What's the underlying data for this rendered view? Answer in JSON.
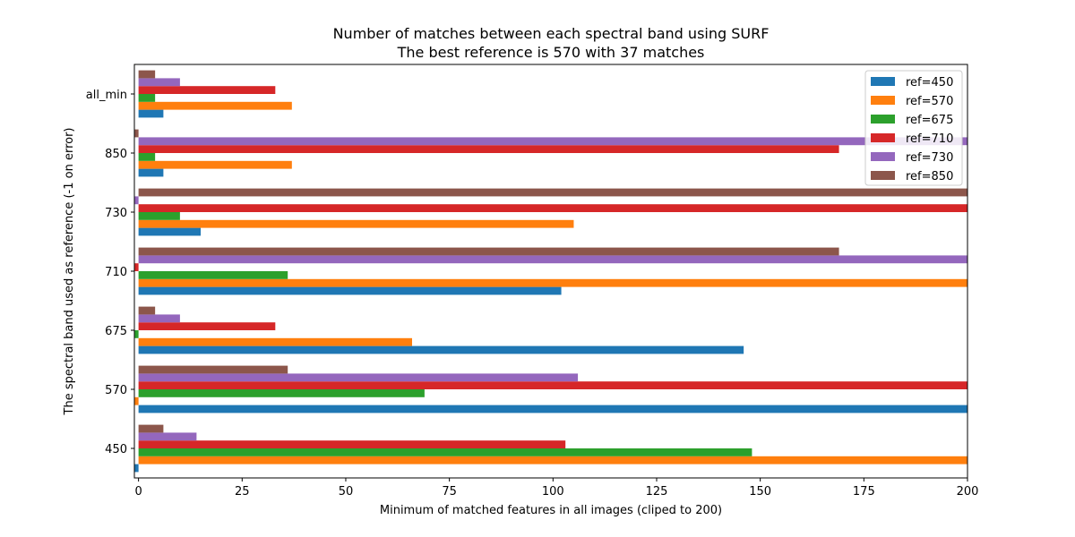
{
  "chart_data": {
    "type": "bar",
    "orientation": "horizontal",
    "title": "Number of matches between each spectral band using SURF",
    "subtitle": "The best reference is 570 with 37 matches",
    "xlabel": "Minimum of matched features in all images (cliped to 200)",
    "ylabel": "The spectral band used as reference (-1 on error)",
    "xlim": [
      -1,
      200
    ],
    "xticks": [
      0,
      25,
      50,
      75,
      100,
      125,
      150,
      175,
      200
    ],
    "categories": [
      "450",
      "570",
      "675",
      "710",
      "730",
      "850",
      "all_min"
    ],
    "series": [
      {
        "name": "ref=450",
        "color": "#1f77b4",
        "values": [
          -1,
          200,
          146,
          102,
          15,
          6,
          6
        ]
      },
      {
        "name": "ref=570",
        "color": "#ff7f0e",
        "values": [
          200,
          -1,
          66,
          200,
          105,
          37,
          37
        ]
      },
      {
        "name": "ref=675",
        "color": "#2ca02c",
        "values": [
          148,
          69,
          -1,
          36,
          10,
          4,
          4
        ]
      },
      {
        "name": "ref=710",
        "color": "#d62728",
        "values": [
          103,
          200,
          33,
          -1,
          200,
          169,
          33
        ]
      },
      {
        "name": "ref=730",
        "color": "#9467bd",
        "values": [
          14,
          106,
          10,
          200,
          -1,
          200,
          10
        ]
      },
      {
        "name": "ref=850",
        "color": "#8c564b",
        "values": [
          6,
          36,
          4,
          169,
          200,
          -1,
          4
        ]
      }
    ],
    "grid": false,
    "legend_position": "top-right"
  }
}
